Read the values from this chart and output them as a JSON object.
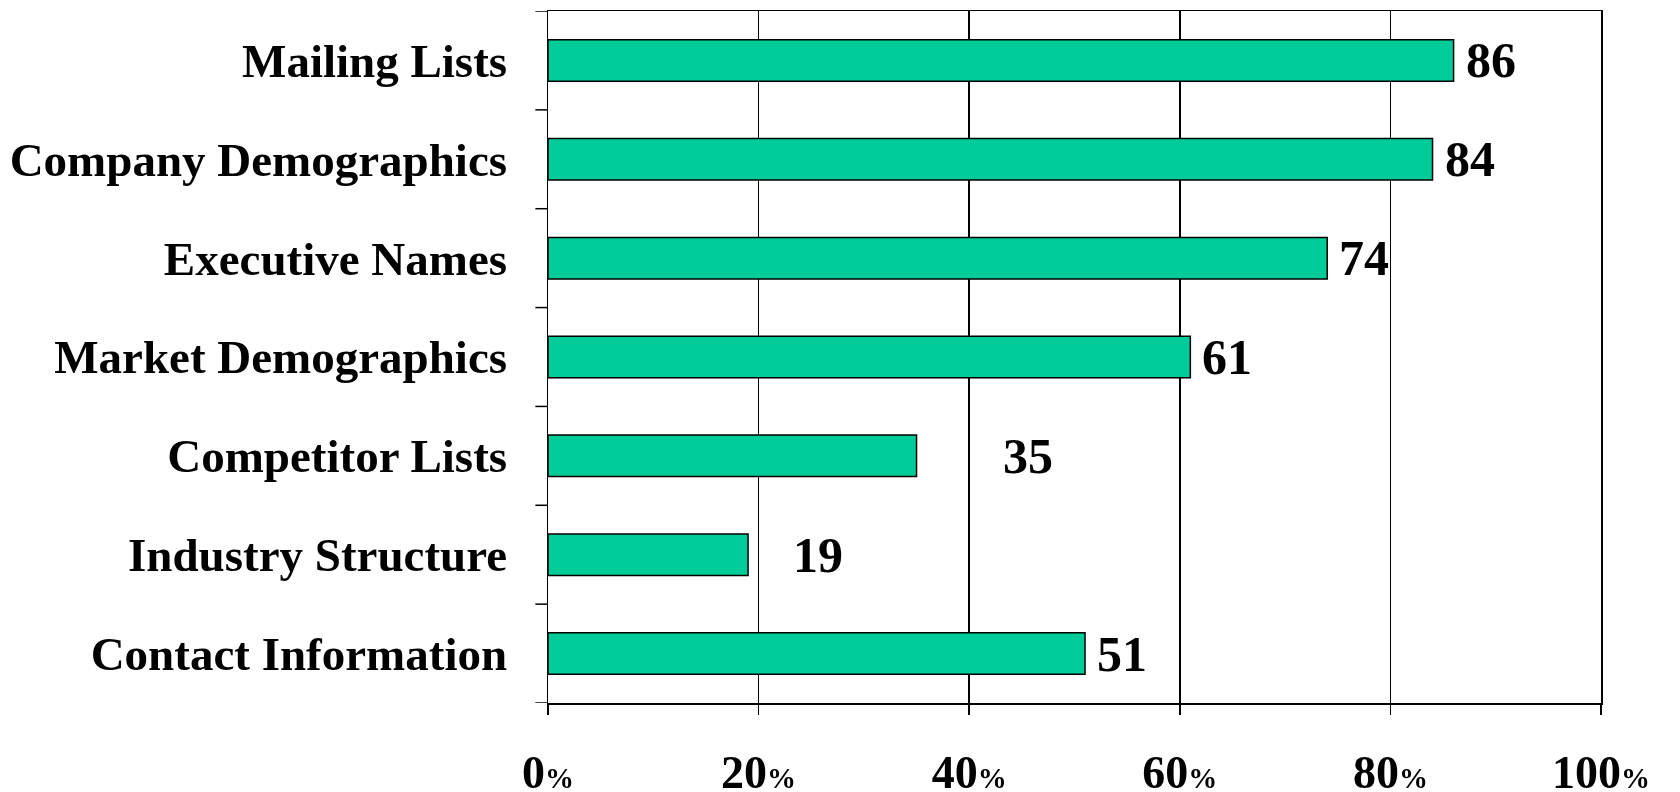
{
  "chart_data": {
    "type": "bar",
    "orientation": "horizontal",
    "categories": [
      "Mailing Lists",
      "Company Demographics",
      "Executive Names",
      "Market Demographics",
      "Competitor Lists",
      "Industry Structure",
      "Contact Information"
    ],
    "values": [
      86,
      84,
      74,
      61,
      35,
      19,
      51
    ],
    "color": "#00cc99",
    "xlim": [
      0,
      100
    ],
    "xticks": [
      {
        "value": 0,
        "label": "0%"
      },
      {
        "value": 20,
        "label": "20%"
      },
      {
        "value": 40,
        "label": "40%"
      },
      {
        "value": 60,
        "label": "60%"
      },
      {
        "value": 80,
        "label": "80%"
      },
      {
        "value": 100,
        "label": "100%"
      }
    ],
    "grid": "x",
    "data_labels": true
  }
}
